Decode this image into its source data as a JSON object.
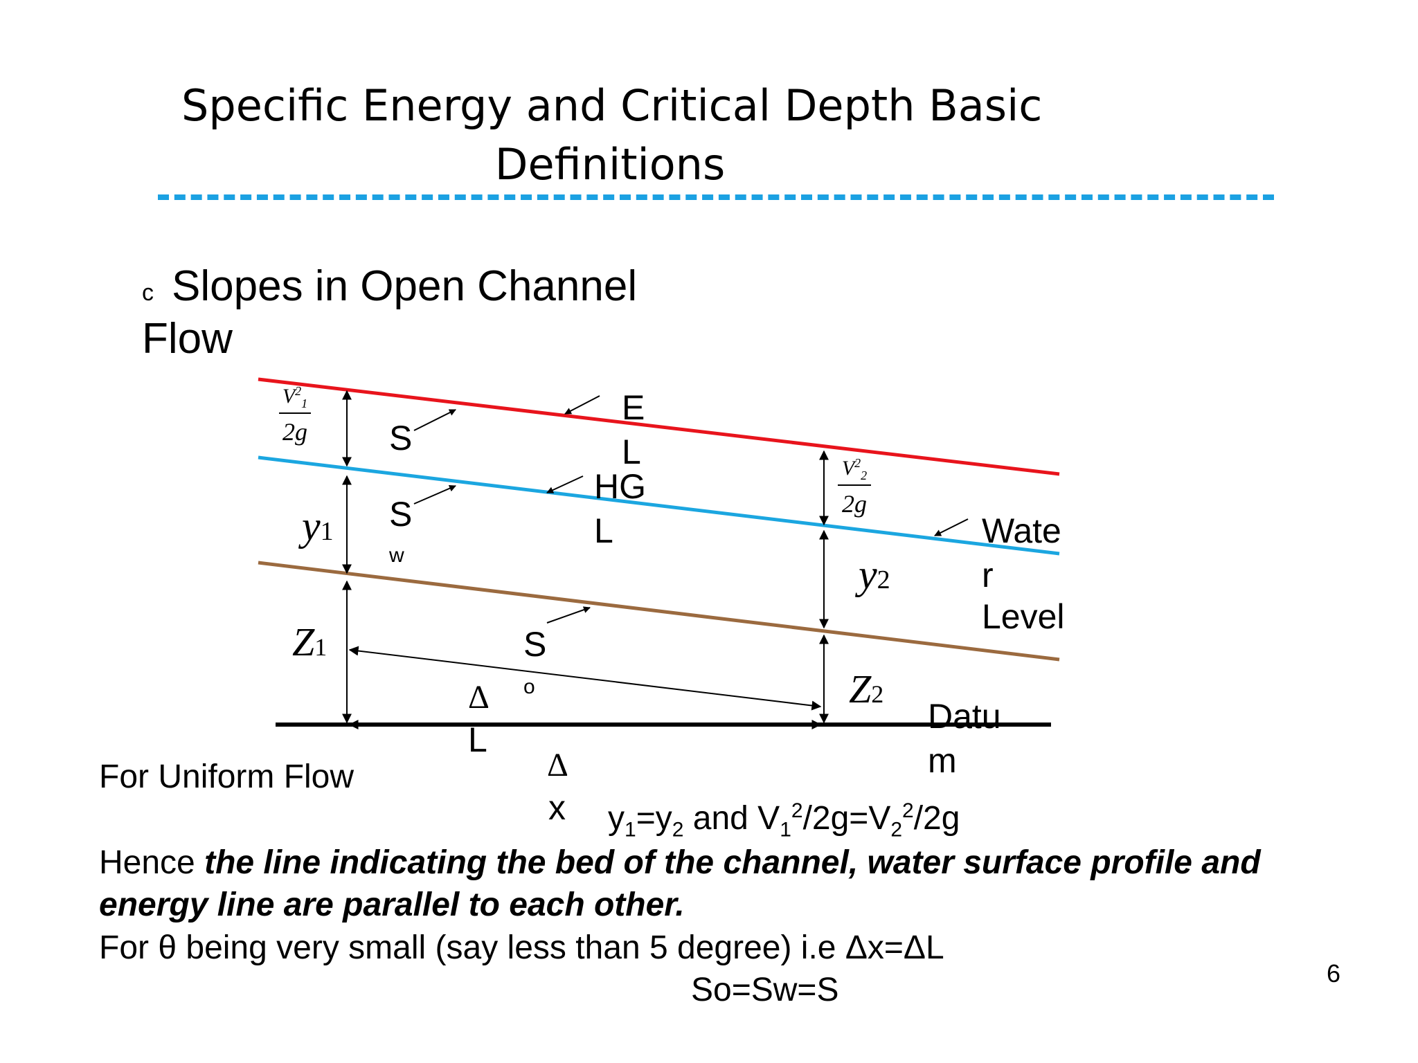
{
  "slide": {
    "title_line1": "Specific Energy and Critical Depth  Basic",
    "title_line2": "Definitions",
    "section_bullet": "c",
    "section_line1": "Slopes in Open Channel",
    "section_line2": "Flow",
    "page_number": "6"
  },
  "diagram": {
    "labels": {
      "el_1": "E",
      "el_2": "L",
      "hgl_1": "HG",
      "hgl_2": "L",
      "s": "S",
      "sw_main": "S",
      "sw_sub": "w",
      "so_main": "S",
      "so_sub": "o",
      "water_1": "Wate",
      "water_2": "r",
      "water_3": "Level",
      "datum_1": "Datu",
      "datum_2": "m",
      "dl_sym": "Δ",
      "dl_letter": "L",
      "dx_sym": "Δ",
      "dx_letter": "x",
      "y1": "y",
      "y1_sub": "1",
      "y2": "y",
      "y2_sub": "2",
      "z1": "Z",
      "z1_sub": "1",
      "z2": "Z",
      "z2_sub": "2",
      "v1_num": "V",
      "v1_num_sub": "1",
      "v1_num_sup": "2",
      "v1_den": "2g",
      "v2_num": "V",
      "v2_num_sub": "2",
      "v2_num_sup": "2",
      "v2_den": "2g"
    },
    "colors": {
      "energy_line": "#e8141c",
      "hydraulic_grade_line": "#1ba6e0",
      "channel_bed": "#9b6a3f",
      "datum": "#000000",
      "dashed_rule": "#1ba1e2"
    }
  },
  "content": {
    "uniform_flow": "For Uniform Flow",
    "eq_prefix_y": "y",
    "eq_s1": "1",
    "eq_mid": "=y",
    "eq_s2": "2",
    "eq_and": " and V",
    "eq_s3": "1",
    "eq_sup1": "2",
    "eq_frac1": "/2g=V",
    "eq_s4": "2",
    "eq_sup2": "2",
    "eq_end": "/2g",
    "hence_prefix": "Hence ",
    "hence_emph_1": "the line indicating the bed of the channel, water surface profile and",
    "hence_emph_2": "energy line are parallel to each other.",
    "theta_line": "For θ being very small (say less than 5 degree) i.e ",
    "theta_eq": "Δx=ΔL",
    "slopes_equal": "So=Sw=S"
  }
}
